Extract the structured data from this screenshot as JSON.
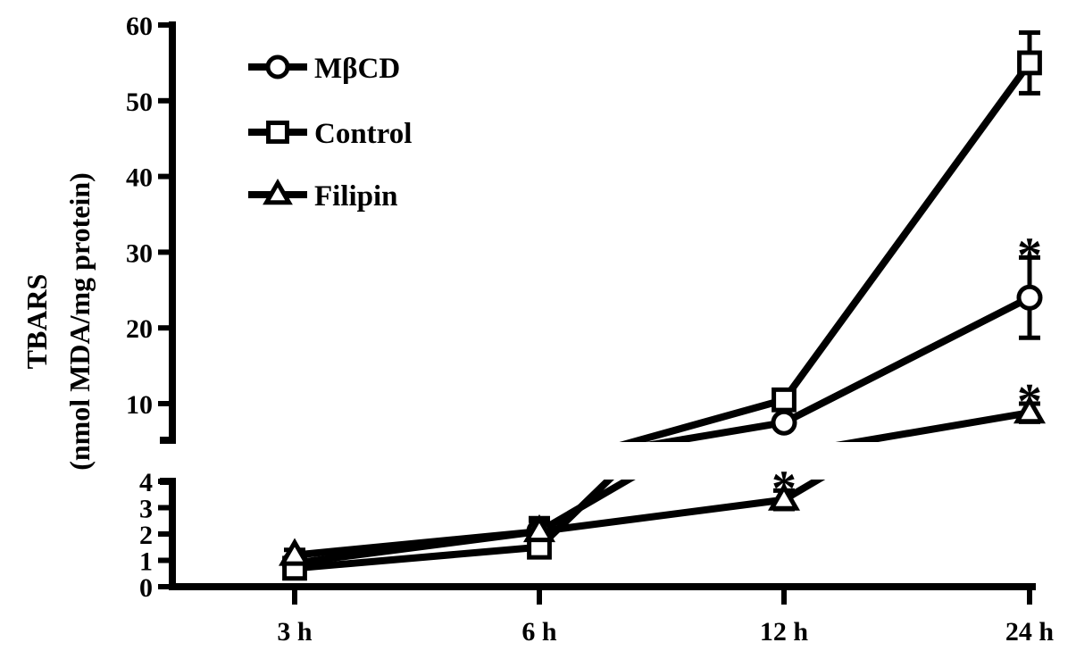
{
  "chart_data": {
    "type": "line",
    "ylabel": "TBARS",
    "ylabel_unit": "(nmol MDA/mg protein)",
    "categories": [
      "3 h",
      "6 h",
      "12 h",
      "24 h"
    ],
    "y_axis": {
      "broken": true,
      "lower_segment": {
        "range": [
          0,
          4
        ],
        "ticks": [
          "0",
          "1",
          "2",
          "3",
          "4"
        ]
      },
      "upper_segment": {
        "range": [
          5,
          60
        ],
        "ticks": [
          "10",
          "20",
          "30",
          "40",
          "50",
          "60"
        ]
      }
    },
    "grid": false,
    "legend_placement": "top-left",
    "series": [
      {
        "name": "MβCD",
        "marker": "circle",
        "values": [
          0.9,
          2.1,
          7.5,
          24.0
        ],
        "errors": [
          0.2,
          0.4,
          0.6,
          5.3
        ]
      },
      {
        "name": "Control",
        "marker": "square",
        "values": [
          0.7,
          1.5,
          10.5,
          55.0
        ],
        "errors": [
          0.15,
          0.3,
          0.8,
          4.0
        ]
      },
      {
        "name": "Filipin",
        "marker": "triangle",
        "values": [
          1.2,
          2.1,
          3.3,
          8.8
        ],
        "errors": [
          0.2,
          0.5,
          0.35,
          1.2
        ]
      }
    ],
    "annotations": [
      {
        "text": "*",
        "category": "12 h",
        "series": "Filipin"
      },
      {
        "text": "*",
        "category": "24 h",
        "series": "MβCD"
      },
      {
        "text": "*",
        "category": "24 h",
        "series": "Filipin"
      }
    ]
  }
}
